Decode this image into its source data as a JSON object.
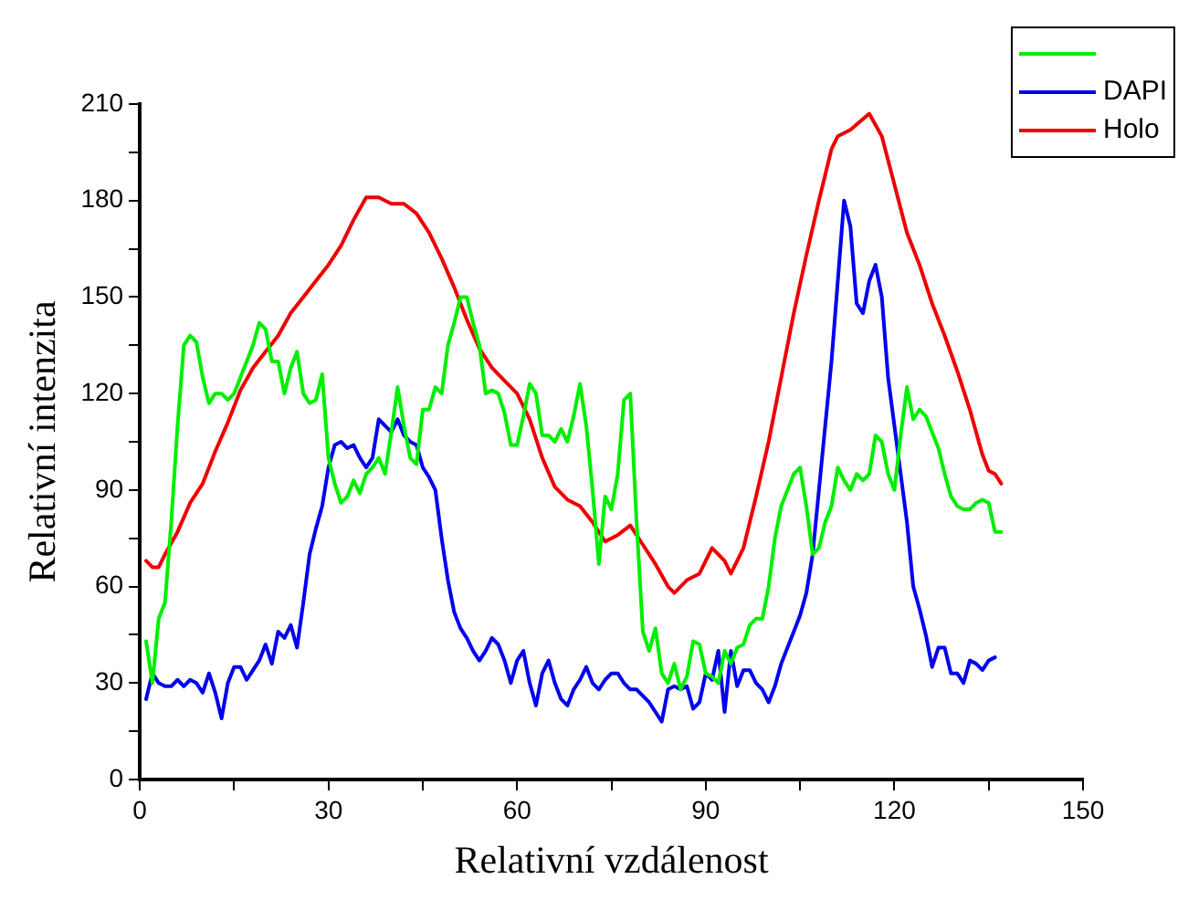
{
  "chart_data": {
    "type": "line",
    "xlabel": "Relativní vzdálenost",
    "ylabel": "Relativní intenzita",
    "xlim": [
      0,
      150
    ],
    "xticks": [
      0,
      {
        "value": 15,
        "label": null
      },
      30,
      {
        "value": 45,
        "label": null
      },
      60,
      {
        "value": 75,
        "label": null
      },
      90,
      {
        "value": 105,
        "label": null
      },
      120,
      {
        "value": 135,
        "label": null
      },
      150
    ],
    "ylim": [
      0,
      210
    ],
    "yticks": [
      0,
      {
        "value": 15,
        "label": null
      },
      30,
      {
        "value": 45,
        "label": null
      },
      60,
      {
        "value": 75,
        "label": null
      },
      90,
      {
        "value": 105,
        "label": null
      },
      120,
      {
        "value": 135,
        "label": null
      },
      150,
      {
        "value": 165,
        "label": null
      },
      180,
      {
        "value": 195,
        "label": null
      },
      210
    ],
    "grid": false,
    "legend": "top right",
    "marker": "none",
    "line_style": "solid",
    "series": [
      {
        "color": "#00ee00",
        "x": [
          1,
          2,
          3,
          4,
          5,
          6,
          7,
          8,
          9,
          10,
          11,
          12,
          13,
          14,
          15,
          16,
          18,
          19,
          20,
          21,
          22,
          23,
          24,
          25,
          26,
          27,
          28,
          29,
          30,
          31,
          32,
          33,
          34,
          35,
          36,
          37,
          38,
          39,
          40,
          41,
          42,
          43,
          44,
          45,
          46,
          47,
          48,
          49,
          50,
          51,
          52,
          53,
          54,
          55,
          56,
          57,
          58,
          59,
          60,
          61,
          62,
          63,
          64,
          65,
          66,
          67,
          68,
          69,
          70,
          71,
          72,
          73,
          74,
          75,
          76,
          77,
          78,
          79,
          80,
          81,
          82,
          83,
          84,
          85,
          86,
          87,
          88,
          89,
          90,
          91,
          92,
          93,
          94,
          95,
          96,
          97,
          98,
          99,
          100,
          101,
          102,
          103,
          104,
          105,
          106,
          107,
          108,
          109,
          110,
          111,
          112,
          113,
          114,
          115,
          116,
          117,
          118,
          119,
          120,
          121,
          122,
          123,
          124,
          125,
          126,
          127,
          128,
          129,
          130,
          131,
          132,
          133,
          134,
          135,
          136,
          137
        ],
        "values": [
          43,
          30,
          50,
          55,
          80,
          110,
          135,
          138,
          136,
          125,
          117,
          120,
          120,
          118,
          120,
          125,
          135,
          142,
          140,
          130,
          130,
          120,
          128,
          133,
          120,
          117,
          118,
          126,
          100,
          92,
          86,
          88,
          93,
          89,
          95,
          97,
          100,
          95,
          108,
          122,
          110,
          100,
          98,
          115,
          115,
          122,
          120,
          135,
          142,
          150,
          150,
          142,
          135,
          120,
          121,
          120,
          114,
          104,
          104,
          113,
          123,
          120,
          107,
          107,
          105,
          109,
          105,
          113,
          123,
          110,
          90,
          67,
          88,
          84,
          95,
          118,
          120,
          80,
          46,
          40,
          47,
          33,
          30,
          36,
          28,
          32,
          43,
          42,
          33,
          32,
          30,
          40,
          36,
          41,
          42,
          48,
          50,
          50,
          60,
          75,
          85,
          90,
          95,
          97,
          85,
          70,
          72,
          80,
          85,
          97,
          93,
          90,
          95,
          93,
          95,
          107,
          105,
          95,
          90,
          107,
          122,
          112,
          115,
          113,
          108,
          103,
          95,
          88,
          85,
          84,
          84,
          86,
          87,
          86,
          77,
          77
        ]
      },
      {
        "name": "DAPI",
        "color": "#0000ee",
        "x": [
          1,
          2,
          3,
          4,
          5,
          6,
          7,
          8,
          9,
          10,
          11,
          12,
          13,
          14,
          15,
          16,
          17,
          18,
          19,
          20,
          21,
          22,
          23,
          24,
          25,
          26,
          27,
          28,
          29,
          30,
          31,
          32,
          33,
          34,
          35,
          36,
          37,
          38,
          39,
          40,
          41,
          42,
          43,
          44,
          45,
          46,
          47,
          48,
          49,
          50,
          51,
          52,
          53,
          54,
          55,
          56,
          57,
          58,
          59,
          60,
          61,
          62,
          63,
          64,
          65,
          66,
          67,
          68,
          69,
          70,
          71,
          72,
          73,
          74,
          75,
          76,
          77,
          78,
          79,
          80,
          81,
          82,
          83,
          84,
          85,
          86,
          87,
          88,
          89,
          90,
          91,
          92,
          93,
          94,
          95,
          96,
          97,
          98,
          99,
          100,
          101,
          102,
          103,
          104,
          105,
          106,
          107,
          108,
          109,
          110,
          111,
          112,
          113,
          114,
          115,
          116,
          117,
          118,
          119,
          120,
          121,
          122,
          123,
          124,
          125,
          126,
          127,
          128,
          129,
          130,
          131,
          132,
          133,
          134,
          135,
          136
        ],
        "values": [
          25,
          33,
          30,
          29,
          29,
          31,
          29,
          31,
          30,
          27,
          33,
          27,
          19,
          30,
          35,
          35,
          31,
          34,
          37,
          42,
          36,
          46,
          44,
          48,
          41,
          55,
          70,
          78,
          85,
          97,
          104,
          105,
          103,
          104,
          100,
          97,
          100,
          112,
          110,
          108,
          112,
          107,
          105,
          104,
          97,
          94,
          90,
          75,
          62,
          52,
          47,
          44,
          40,
          37,
          40,
          44,
          42,
          37,
          30,
          37,
          40,
          30,
          23,
          33,
          37,
          30,
          25,
          23,
          28,
          31,
          35,
          30,
          28,
          31,
          33,
          33,
          30,
          28,
          28,
          26,
          24,
          21,
          18,
          28,
          29,
          28,
          29,
          22,
          24,
          33,
          31,
          40,
          21,
          40,
          29,
          34,
          34,
          30,
          28,
          24,
          29,
          36,
          41,
          46,
          51,
          58,
          70,
          90,
          110,
          130,
          155,
          180,
          172,
          148,
          145,
          155,
          160,
          150,
          125,
          110,
          95,
          80,
          60,
          53,
          45,
          35,
          41,
          41,
          33,
          33,
          30,
          37,
          36,
          34,
          37,
          38
        ]
      },
      {
        "name": "Holo",
        "color": "#ee0000",
        "x": [
          1,
          2,
          3,
          4,
          6,
          8,
          10,
          12,
          14,
          16,
          18,
          20,
          22,
          24,
          26,
          28,
          30,
          32,
          34,
          36,
          38,
          40,
          42,
          44,
          46,
          48,
          50,
          52,
          54,
          56,
          58,
          60,
          62,
          64,
          66,
          68,
          70,
          72,
          74,
          76,
          78,
          80,
          82,
          84,
          85,
          87,
          89,
          91,
          93,
          94,
          96,
          98,
          100,
          102,
          104,
          106,
          108,
          110,
          111,
          113,
          116,
          118,
          120,
          122,
          124,
          126,
          128,
          130,
          132,
          134,
          135,
          136,
          137
        ],
        "values": [
          68,
          66,
          66,
          70,
          77,
          86,
          92,
          102,
          111,
          121,
          128,
          133,
          138,
          145,
          150,
          155,
          160,
          166,
          174,
          181,
          181,
          179,
          179,
          176,
          170,
          162,
          153,
          143,
          134,
          128,
          124,
          120,
          112,
          100,
          91,
          87,
          85,
          80,
          74,
          76,
          79,
          73,
          67,
          60,
          58,
          62,
          64,
          72,
          68,
          64,
          72,
          88,
          105,
          125,
          145,
          163,
          180,
          196,
          200,
          202,
          207,
          200,
          185,
          170,
          160,
          148,
          138,
          127,
          115,
          101,
          96,
          95,
          92
        ]
      }
    ]
  }
}
